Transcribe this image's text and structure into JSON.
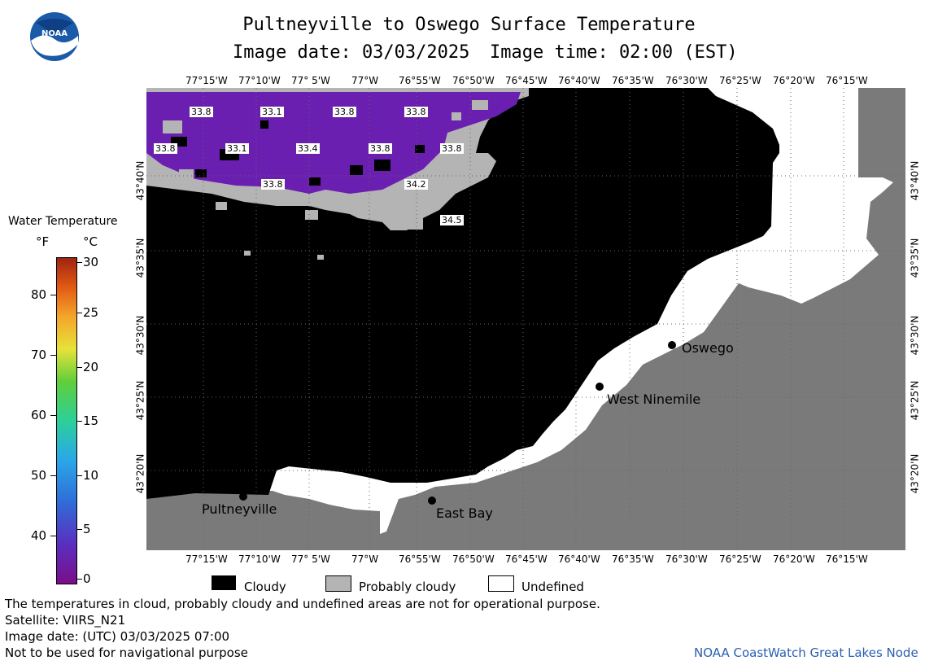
{
  "header": {
    "title": "Pultneyville to Oswego Surface Temperature",
    "image_date": "Image date: 03/03/2025",
    "image_time": "Image time: 02:00 (EST)"
  },
  "logo": {
    "text": "NOAA"
  },
  "map": {
    "lon_ticks": [
      "77°15'W",
      "77°10'W",
      "77° 5'W",
      "77°W",
      "76°55'W",
      "76°50'W",
      "76°45'W",
      "76°40'W",
      "76°35'W",
      "76°30'W",
      "76°25'W",
      "76°20'W",
      "76°15'W"
    ],
    "lat_ticks": [
      "43°40'N",
      "43°35'N",
      "43°30'N",
      "43°25'N",
      "43°20'N"
    ],
    "temp_labels": [
      "33.8",
      "33.1",
      "33.8",
      "33.8",
      "33.8",
      "33.1",
      "33.4",
      "33.8",
      "33.8",
      "33.8",
      "34.2",
      "34.5"
    ],
    "places": [
      "Oswego",
      "West Ninemile",
      "Pultneyville",
      "East Bay"
    ],
    "colors": {
      "cloudy": "#000000",
      "probably_cloudy": "#b4b4b4",
      "undefined": "#ffffff",
      "land": "#7a7a7a",
      "water_cold": "#6a1fb0"
    }
  },
  "legend": {
    "title": "Water Temperature",
    "unit_f": "°F",
    "unit_c": "°C",
    "f_ticks": [
      "80",
      "70",
      "60",
      "50",
      "40"
    ],
    "c_ticks": [
      "30",
      "25",
      "20",
      "15",
      "10",
      "5",
      "0"
    ]
  },
  "key": {
    "cloudy": "Cloudy",
    "probably_cloudy": "Probably cloudy",
    "undefined": "Undefined"
  },
  "footer": {
    "note": "The temperatures in cloud, probably cloudy and undefined areas are not for operational purpose.",
    "satellite": "Satellite: VIIRS_N21",
    "utc_date": "Image date: (UTC) 03/03/2025  07:00",
    "nav": "Not to be used for navigational purpose",
    "credit": "NOAA CoastWatch Great Lakes Node"
  }
}
